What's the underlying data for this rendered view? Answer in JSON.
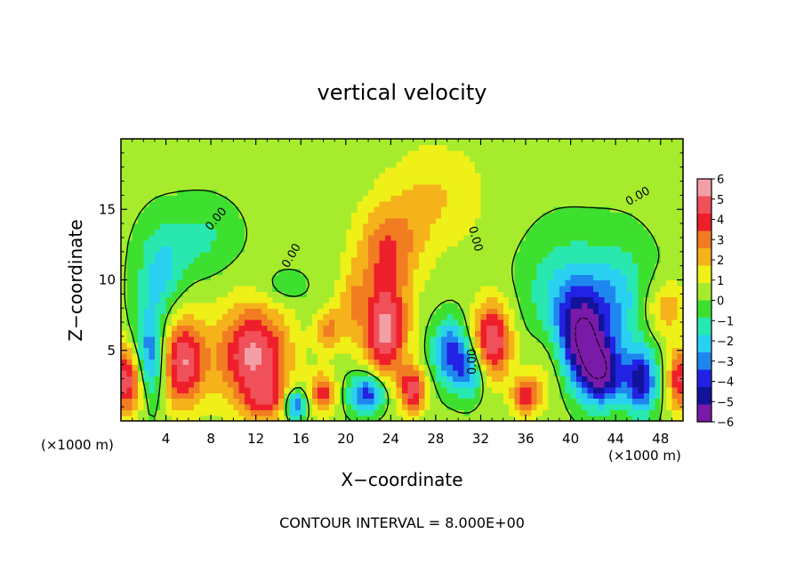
{
  "chart_data": {
    "type": "heatmap",
    "title": "vertical velocity",
    "xlabel": "X−coordinate",
    "ylabel": "Z−coordinate",
    "x_unit_left": "(×1000 m)",
    "x_unit_right": "(×1000 m)",
    "footer": "CONTOUR INTERVAL = 8.000E+00",
    "xlim": [
      0,
      50
    ],
    "ylim": [
      0,
      20
    ],
    "x_ticks": [
      4,
      8,
      12,
      16,
      20,
      24,
      28,
      32,
      36,
      40,
      44,
      48
    ],
    "x_tick_labels": [
      "4",
      "8",
      "12",
      "16",
      "20",
      "24",
      "28",
      "32",
      "36",
      "40",
      "44",
      "48"
    ],
    "y_ticks": [
      5,
      10,
      15
    ],
    "y_tick_labels": [
      "5",
      "10",
      "15"
    ],
    "colorbar": {
      "labels": [
        "6",
        "5",
        "4",
        "3",
        "2",
        "1",
        "0",
        "−1",
        "−2",
        "−3",
        "−4",
        "−5",
        "−6"
      ],
      "colors": [
        "#f2a0a6",
        "#f0505a",
        "#ee1f2a",
        "#f27c22",
        "#f5b21b",
        "#eef018",
        "#a6ec2d",
        "#3ee030",
        "#28e8b0",
        "#2ad0f0",
        "#1e86ee",
        "#2222e4",
        "#12129a",
        "#7a1aa8"
      ]
    },
    "contour_labels": [
      {
        "text": "0.00",
        "x": 8.5,
        "z": 14.3,
        "rotate": -50
      },
      {
        "text": "0.00",
        "x": 15.2,
        "z": 11.7,
        "rotate": -60
      },
      {
        "text": "0.00",
        "x": 31.5,
        "z": 12.9,
        "rotate": 75
      },
      {
        "text": "0.00",
        "x": 31.3,
        "z": 4.2,
        "rotate": -90
      },
      {
        "text": "0.00",
        "x": 46.0,
        "z": 15.9,
        "rotate": -30
      }
    ],
    "features": [
      {
        "x": 0.6,
        "z": 3.0,
        "rx": 1.6,
        "rz": 2.6,
        "v": 6
      },
      {
        "x": 5.3,
        "z": 4.2,
        "rx": 2.2,
        "rz": 3.2,
        "v": 6
      },
      {
        "x": 11.8,
        "z": 4.7,
        "rx": 3.2,
        "rz": 3.6,
        "v": 6
      },
      {
        "x": 23.5,
        "z": 6.5,
        "rx": 2.0,
        "rz": 3.8,
        "v": 6
      },
      {
        "x": 23.8,
        "z": 12.3,
        "rx": 3.0,
        "rz": 3.2,
        "v": 3.2
      },
      {
        "x": 26.0,
        "z": 2.2,
        "rx": 1.2,
        "rz": 1.6,
        "v": 5
      },
      {
        "x": 33.0,
        "z": 5.7,
        "rx": 1.7,
        "rz": 2.7,
        "v": 6
      },
      {
        "x": 36.0,
        "z": 1.8,
        "rx": 1.2,
        "rz": 1.4,
        "v": 4.5
      },
      {
        "x": 18.0,
        "z": 2.0,
        "rx": 1.1,
        "rz": 1.4,
        "v": 4.5
      },
      {
        "x": 18.5,
        "z": 6.5,
        "rx": 1.2,
        "rz": 1.6,
        "v": 3
      },
      {
        "x": 13.0,
        "z": 1.5,
        "rx": 2.0,
        "rz": 1.4,
        "v": 3
      },
      {
        "x": 48.5,
        "z": 8.0,
        "rx": 2.0,
        "rz": 2.0,
        "v": 2.5
      },
      {
        "x": 2.6,
        "z": 4.5,
        "rx": 1.6,
        "rz": 3.2,
        "v": -5.5
      },
      {
        "x": 3.5,
        "z": 10.5,
        "rx": 2.0,
        "rz": 3.2,
        "v": -2.5
      },
      {
        "x": 7.0,
        "z": 13.0,
        "rx": 3.2,
        "rz": 2.5,
        "v": -1.5
      },
      {
        "x": 15.5,
        "z": 1.2,
        "rx": 1.0,
        "rz": 1.1,
        "v": -5
      },
      {
        "x": 22.0,
        "z": 2.0,
        "rx": 1.6,
        "rz": 1.4,
        "v": -5.5
      },
      {
        "x": 29.3,
        "z": 5.0,
        "rx": 1.6,
        "rz": 2.2,
        "v": -4.5
      },
      {
        "x": 31.0,
        "z": 3.5,
        "rx": 1.5,
        "rz": 1.8,
        "v": -3.5
      },
      {
        "x": 41.0,
        "z": 6.0,
        "rx": 2.2,
        "rz": 3.0,
        "v": -6
      },
      {
        "x": 42.8,
        "z": 3.3,
        "rx": 2.2,
        "rz": 2.2,
        "v": -6
      },
      {
        "x": 39.5,
        "z": 9.0,
        "rx": 3.5,
        "rz": 4.0,
        "v": -2.5
      },
      {
        "x": 44.2,
        "z": 8.6,
        "rx": 3.0,
        "rz": 4.0,
        "v": -2.5
      },
      {
        "x": 46.3,
        "z": 2.8,
        "rx": 1.3,
        "rz": 2.2,
        "v": -5.5
      },
      {
        "x": 49.6,
        "z": 3.0,
        "rx": 0.9,
        "rz": 2.2,
        "v": 5
      },
      {
        "x": 28.0,
        "z": 16.0,
        "rx": 4.5,
        "rz": 3.8,
        "v": 1.8
      },
      {
        "x": 20.5,
        "z": 8.3,
        "rx": 1.2,
        "rz": 2.6,
        "v": 2.2
      },
      {
        "x": 38.0,
        "z": 4.0,
        "rx": 2.0,
        "rz": 3.0,
        "v": 1.4
      },
      {
        "x": 14.5,
        "z": 9.5,
        "rx": 2.0,
        "rz": 1.2,
        "v": -1.2
      }
    ]
  }
}
